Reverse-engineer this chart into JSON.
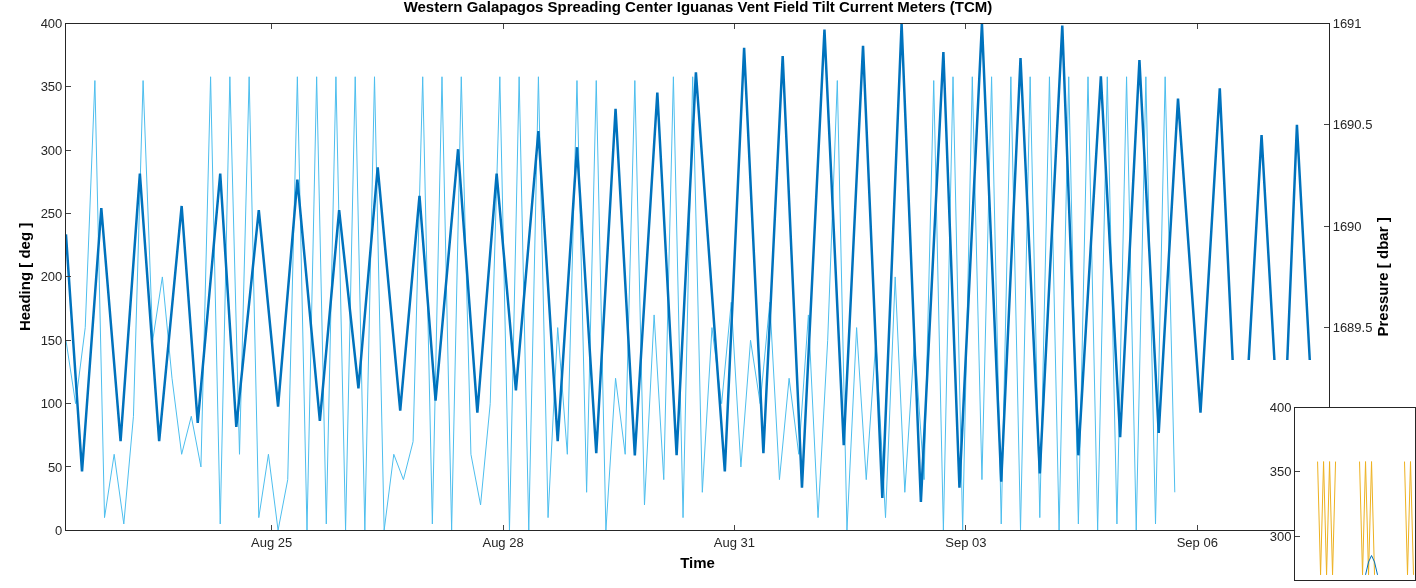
{
  "chart_data": [
    {
      "type": "line",
      "title": "Western Galapagos Spreading Center Iguanas Vent Field Tilt Current Meters (TCM)",
      "xlabel": "Time",
      "ylabel": "Heading [ deg ]",
      "y2label": "Pressure [ dbar ]",
      "xlim": [
        "--08-22T08:00",
        "--09-07T17:00"
      ],
      "xticks": [
        {
          "value": "--08-25",
          "label": "Aug 25"
        },
        {
          "value": "--08-28",
          "label": "Aug 28"
        },
        {
          "value": "--08-31",
          "label": "Aug 31"
        },
        {
          "value": "--09-03",
          "label": "Sep 03"
        },
        {
          "value": "--09-06",
          "label": "Sep 06"
        }
      ],
      "ylim": [
        0,
        400
      ],
      "yticks": [
        0,
        50,
        100,
        150,
        200,
        250,
        300,
        350,
        400
      ],
      "y2lim": [
        1688.5,
        1691
      ],
      "y2ticks": [
        1689.5,
        1690,
        {
          "value": 1690.5,
          "label": "1690.5"
        },
        1691
      ],
      "line_style": "solid",
      "series": [
        {
          "color": "#4dbeee",
          "x": [
            "--08-22T08:00",
            "--08-22T11:00",
            "--08-22T14:00",
            "--08-22T17:00",
            "--08-22T20:00",
            "--08-22T23:00",
            "--08-23T02:00",
            "--08-23T05:00",
            "--08-23T08:00",
            "--08-23T11:00",
            "--08-23T14:00",
            "--08-23T17:00",
            "--08-23T20:00",
            "--08-23T23:00",
            "--08-24T02:00",
            "--08-24T05:00",
            "--08-24T08:00",
            "--08-24T11:00",
            "--08-24T14:00",
            "--08-24T17:00",
            "--08-24T20:00",
            "--08-24T23:00",
            "--08-25T02:00",
            "--08-25T05:00",
            "--08-25T08:00",
            "--08-25T11:00",
            "--08-25T14:00",
            "--08-25T17:00",
            "--08-25T20:00",
            "--08-25T23:00",
            "--08-26T02:00",
            "--08-26T05:00",
            "--08-26T08:00",
            "--08-26T11:00",
            "--08-26T14:00",
            "--08-26T17:00",
            "--08-26T20:00",
            "--08-26T23:00",
            "--08-27T02:00",
            "--08-27T05:00",
            "--08-27T08:00",
            "--08-27T11:00",
            "--08-27T14:00",
            "--08-27T17:00",
            "--08-27T20:00",
            "--08-27T23:00",
            "--08-28T02:00",
            "--08-28T05:00",
            "--08-28T08:00",
            "--08-28T11:00",
            "--08-28T14:00",
            "--08-28T17:00",
            "--08-28T20:00",
            "--08-28T23:00",
            "--08-29T02:00",
            "--08-29T05:00",
            "--08-29T08:00",
            "--08-29T11:00",
            "--08-29T14:00",
            "--08-29T17:00",
            "--08-29T20:00",
            "--08-29T23:00",
            "--08-30T02:00",
            "--08-30T05:00",
            "--08-30T08:00",
            "--08-30T11:00",
            "--08-30T14:00",
            "--08-30T17:00",
            "--08-30T20:00",
            "--08-30T23:00",
            "--08-31T02:00",
            "--08-31T05:00",
            "--08-31T08:00",
            "--08-31T11:00",
            "--08-31T14:00",
            "--08-31T17:00",
            "--08-31T20:00",
            "--08-31T23:00",
            "--09-01T02:00",
            "--09-01T05:00",
            "--09-01T08:00",
            "--09-01T11:00",
            "--09-01T14:00",
            "--09-01T17:00",
            "--09-01T20:00",
            "--09-01T23:00",
            "--09-02T02:00",
            "--09-02T05:00",
            "--09-02T08:00",
            "--09-02T11:00",
            "--09-02T14:00",
            "--09-02T17:00",
            "--09-02T20:00",
            "--09-02T23:00",
            "--09-03T02:00",
            "--09-03T05:00",
            "--09-03T08:00",
            "--09-03T11:00",
            "--09-03T14:00",
            "--09-03T17:00",
            "--09-03T20:00",
            "--09-03T23:00",
            "--09-04T02:00",
            "--09-04T05:00",
            "--09-04T08:00",
            "--09-04T11:00",
            "--09-04T14:00",
            "--09-04T17:00",
            "--09-04T20:00",
            "--09-04T23:00",
            "--09-05T02:00",
            "--09-05T05:00",
            "--09-05T08:00",
            "--09-05T11:00",
            "--09-05T14:00",
            "--09-05T17:00"
          ],
          "values": [
            150,
            100,
            160,
            355,
            10,
            60,
            5,
            90,
            355,
            150,
            200,
            120,
            60,
            90,
            50,
            358,
            5,
            358,
            60,
            358,
            10,
            60,
            0,
            40,
            358,
            0,
            358,
            5,
            358,
            0,
            358,
            0,
            358,
            0,
            60,
            40,
            70,
            358,
            5,
            358,
            0,
            358,
            60,
            20,
            100,
            358,
            0,
            358,
            0,
            358,
            10,
            160,
            60,
            355,
            30,
            355,
            0,
            120,
            60,
            355,
            20,
            170,
            40,
            358,
            10,
            358,
            30,
            160,
            100,
            180,
            50,
            150,
            100,
            180,
            40,
            120,
            60,
            170,
            10,
            150,
            355,
            0,
            160,
            40,
            150,
            10,
            200,
            30,
            150,
            40,
            355,
            0,
            358,
            0,
            358,
            40,
            358,
            5,
            358,
            0,
            358,
            10,
            358,
            0,
            358,
            5,
            358,
            0,
            358,
            5,
            358,
            0,
            358,
            5,
            358,
            30
          ]
        },
        {
          "color": "#0072bd",
          "axis": "y2",
          "x": [
            "--08-22T08:00",
            "--08-22T13:00",
            "--08-22T19:00",
            "--08-23T01:00",
            "--08-23T07:00",
            "--08-23T13:00",
            "--08-23T20:00",
            "--08-24T01:00",
            "--08-24T08:00",
            "--08-24T13:00",
            "--08-24T20:00",
            "--08-25T02:00",
            "--08-25T08:00",
            "--08-25T15:00",
            "--08-25T21:00",
            "--08-26T03:00",
            "--08-26T09:00",
            "--08-26T16:00",
            "--08-26T22:00",
            "--08-27T03:00",
            "--08-27T10:00",
            "--08-27T16:00",
            "--08-27T22:00",
            "--08-28T04:00",
            "--08-28T11:00",
            "--08-28T17:00",
            "--08-28T23:00",
            "--08-29T05:00",
            "--08-29T11:00",
            "--08-29T17:00",
            "--08-30T00:00",
            "--08-30T06:00",
            "--08-30T12:00",
            "--08-30T21:00",
            "--08-31T03:00",
            "--08-31T09:00",
            "--08-31T15:00",
            "--08-31T21:00",
            "--09-01T04:00",
            "--09-01T10:00",
            "--09-01T16:00",
            "--09-01T22:00",
            "--09-02T04:00",
            "--09-02T10:00",
            "--09-02T17:00",
            "--09-02T22:00",
            "--09-03T05:00",
            "--09-03T11:00",
            "--09-03T17:00",
            "--09-03T23:00",
            "--09-04T06:00",
            "--09-04T11:00",
            "--09-04T18:00",
            "--09-05T00:00",
            "--09-05T06:00",
            "--09-05T12:00",
            "--09-05T18:00",
            "--09-06T01:00",
            "--09-06T07:00",
            "--09-06T11:00",
            "--09-06T13:00",
            "--09-06T16:00",
            "--09-06T20:00",
            "--09-07T00:00",
            "--09-07T02:00",
            "--09-07T04:00",
            "--09-07T07:00",
            "--09-07T11:00"
          ],
          "values": [
            1689.96,
            1688.79,
            1690.09,
            1688.94,
            1690.26,
            1688.94,
            1690.1,
            1689.03,
            1690.26,
            1689.01,
            1690.08,
            1689.11,
            1690.23,
            1689.04,
            1690.08,
            1689.2,
            1690.29,
            1689.09,
            1690.15,
            1689.14,
            1690.38,
            1689.08,
            1690.26,
            1689.19,
            1690.47,
            1688.94,
            1690.39,
            1688.88,
            1690.58,
            1688.87,
            1690.66,
            1688.87,
            1690.76,
            1688.79,
            1690.88,
            1688.88,
            1690.84,
            1688.71,
            1690.97,
            1688.92,
            1690.89,
            1688.66,
            1691.0,
            1688.64,
            1690.86,
            1688.71,
            1691.0,
            1688.74,
            1690.83,
            1688.78,
            1690.99,
            1688.87,
            1690.74,
            1688.96,
            1690.82,
            1688.98,
            1690.63,
            1689.08,
            1690.68,
            1689.34,
            null,
            1689.34,
            1690.45,
            1689.34,
            null,
            1689.34,
            1690.5,
            1689.34
          ]
        }
      ]
    },
    {
      "type": "line",
      "categories": [
        null,
        null,
        null,
        null,
        null,
        null,
        null,
        null,
        null,
        null,
        null,
        null,
        null,
        null,
        null,
        null,
        null,
        null,
        null,
        null,
        null,
        null,
        null,
        null,
        null,
        null,
        null,
        null,
        null,
        null,
        null,
        null,
        null,
        null,
        null,
        null,
        null,
        null,
        null,
        null
      ],
      "ylim": [
        266,
        400
      ],
      "yticks": [
        300,
        350,
        400
      ],
      "tick_labels": "y",
      "line_style": "solid",
      "series": [
        {
          "color": "#edb120",
          "values": [
            null,
            null,
            null,
            null,
            null,
            null,
            null,
            358,
            270,
            358,
            270,
            358,
            270,
            358,
            null,
            null,
            null,
            null,
            null,
            null,
            null,
            358,
            270,
            358,
            270,
            358,
            270,
            null,
            null,
            null,
            null,
            null,
            null,
            null,
            null,
            null,
            358,
            270,
            358,
            270
          ]
        },
        {
          "color": "#0072bd",
          "values": [
            null,
            null,
            null,
            null,
            null,
            null,
            null,
            null,
            null,
            null,
            null,
            null,
            null,
            null,
            null,
            null,
            null,
            null,
            null,
            null,
            null,
            null,
            null,
            270,
            280,
            285,
            280,
            270,
            null,
            null,
            null,
            null,
            null,
            null,
            null,
            null,
            null,
            null,
            null,
            null
          ]
        }
      ]
    }
  ]
}
